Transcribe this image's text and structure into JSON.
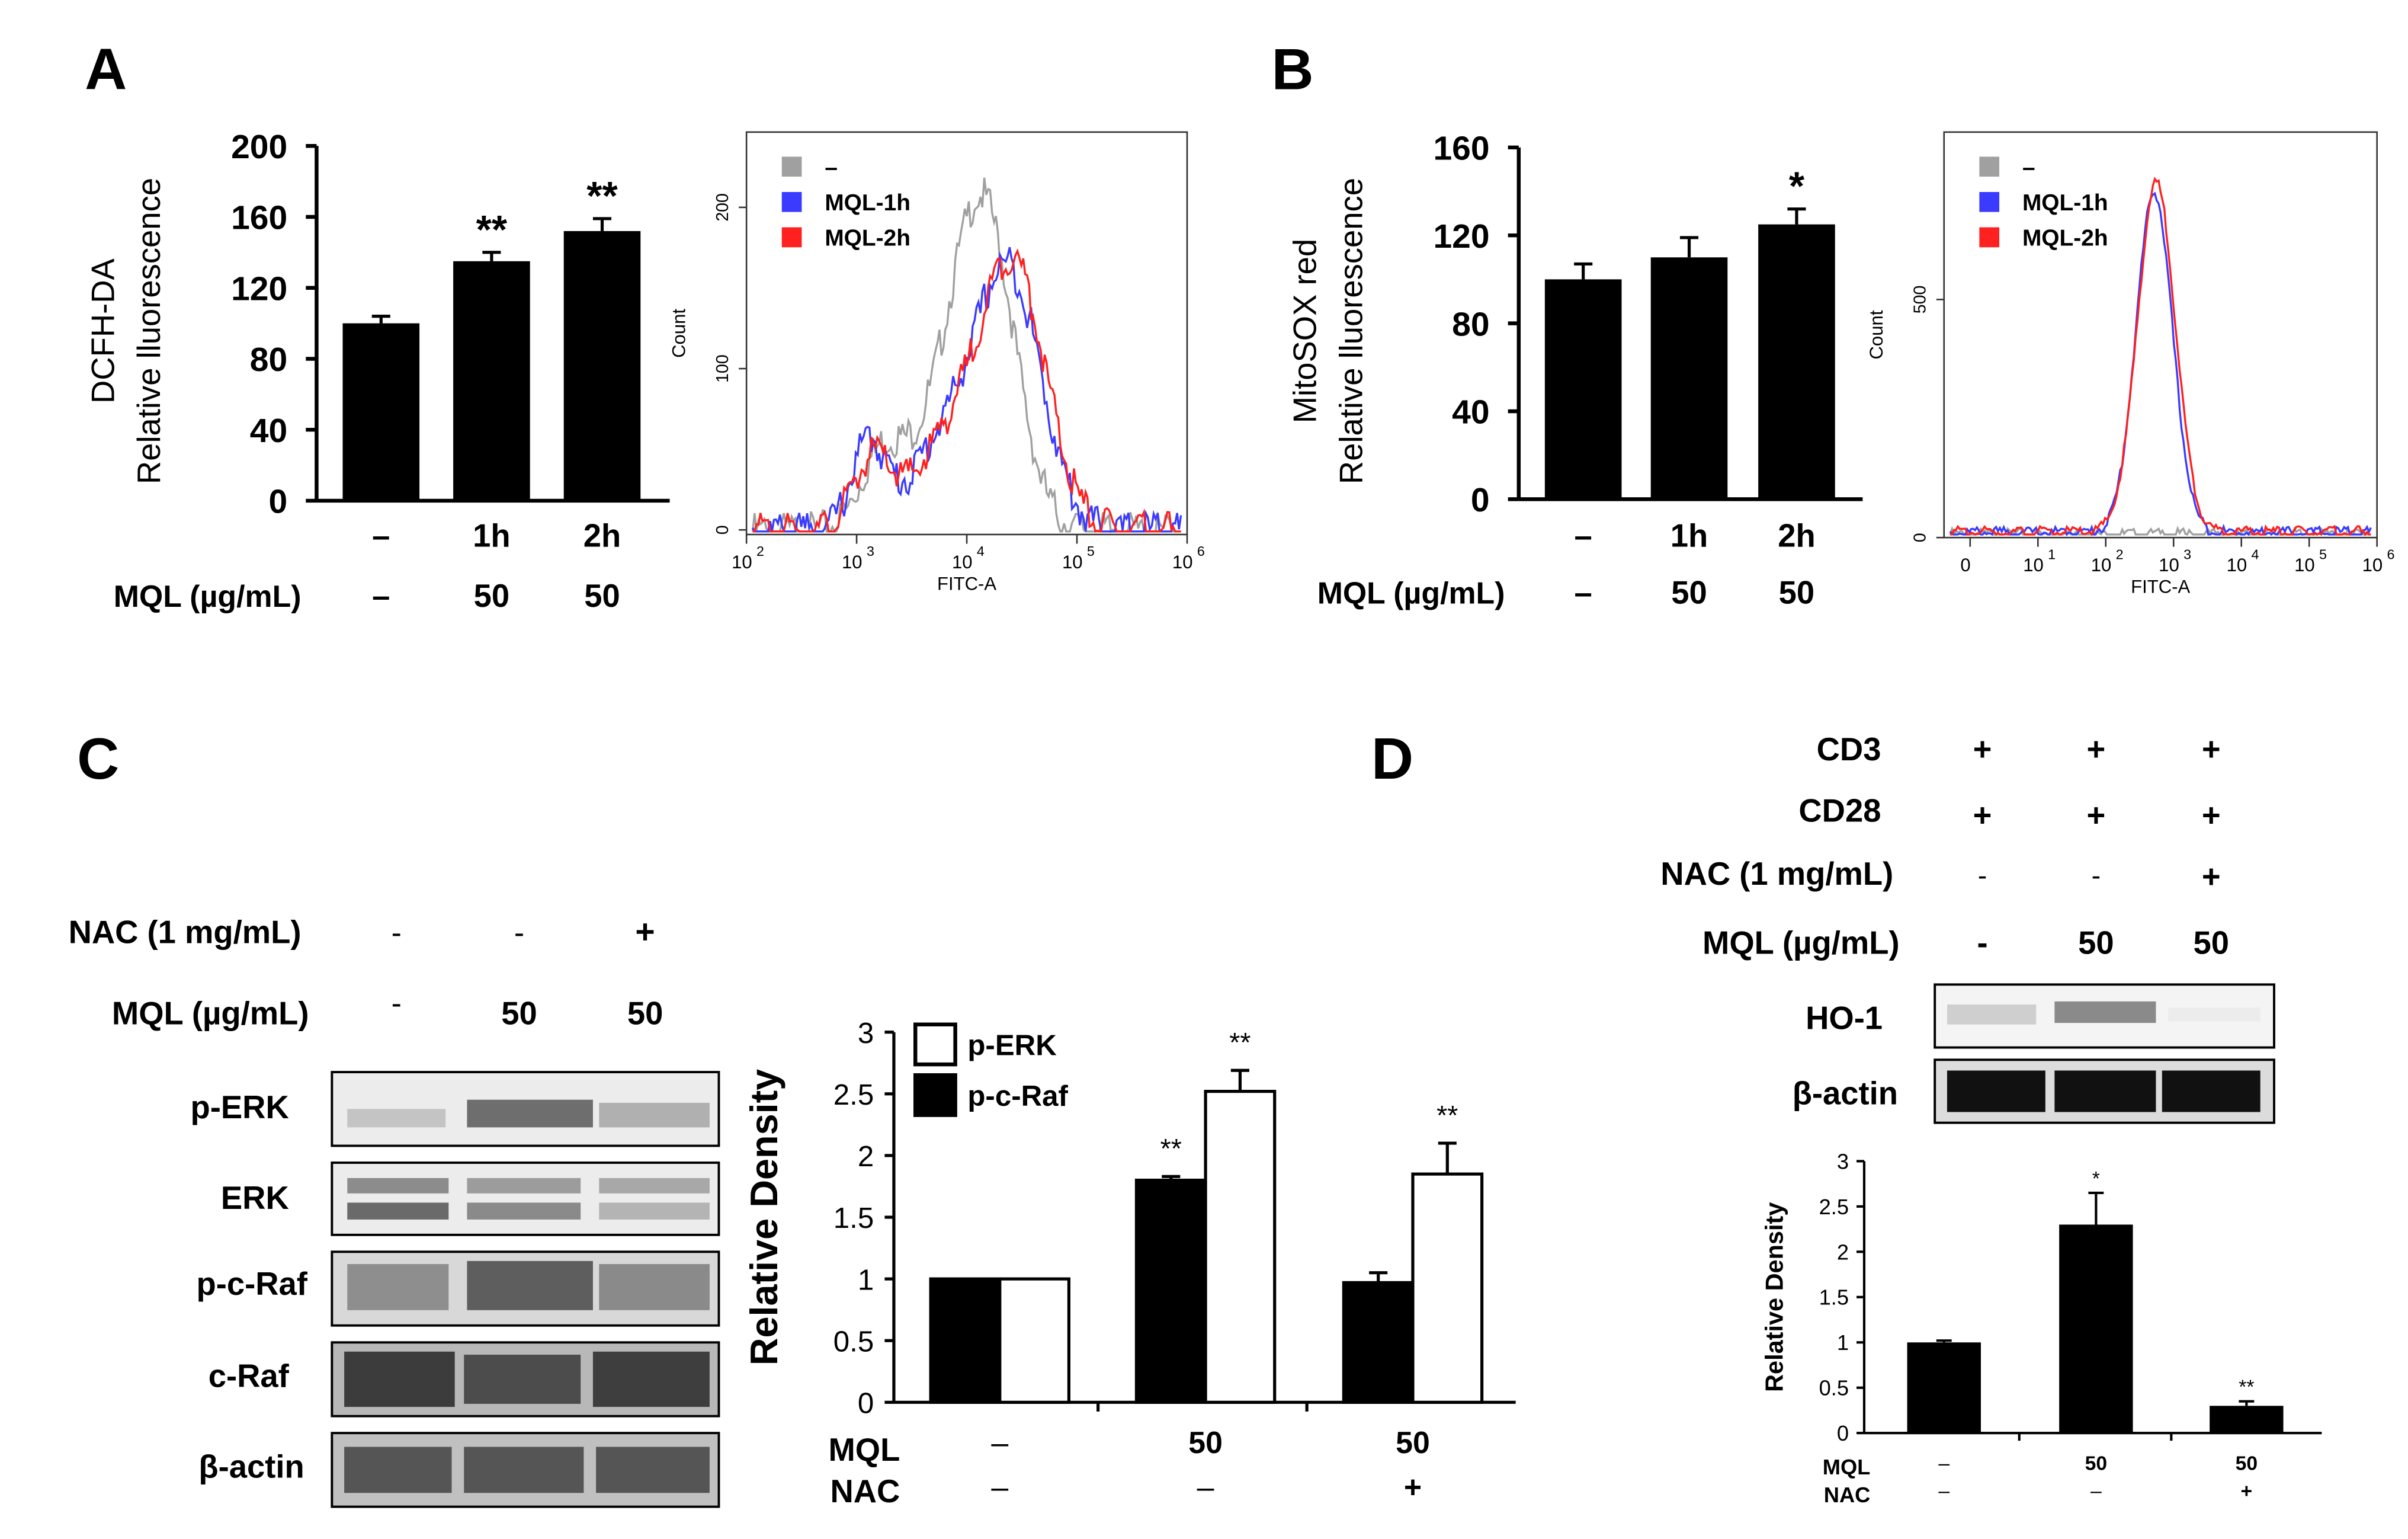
{
  "colors": {
    "black": "#000000",
    "gray": "#a0a0a0",
    "blue": "#3b3bff",
    "red": "#ff2020",
    "white": "#ffffff"
  },
  "chart_data": [
    {
      "panel": "A",
      "type": "bar",
      "ylabel": [
        "DCFH-DA",
        "Relative lluorescence"
      ],
      "ylim": [
        0,
        200
      ],
      "yticks": [
        "0",
        "40",
        "80",
        "120",
        "160",
        "200"
      ],
      "categories": [
        "–",
        "1h",
        "2h"
      ],
      "row_label": "MQL  (µg/mL)",
      "row_values": [
        "–",
        "50",
        "50"
      ],
      "values": [
        100,
        135,
        152
      ],
      "errors": [
        4,
        5,
        7
      ],
      "annotations": [
        "",
        "**",
        "**"
      ]
    },
    {
      "panel": "A-histogram",
      "type": "line",
      "xlabel": "FITC-A",
      "ylabel": "Count",
      "yticks": [
        "0",
        "100",
        "200"
      ],
      "xticks": [
        "10",
        "10",
        "10",
        "10",
        "10"
      ],
      "xtick_exponents": [
        "2",
        "3",
        "4",
        "5",
        "6"
      ],
      "legend": [
        "–",
        "MQL-1h",
        "MQL-2h"
      ],
      "series_count": 3
    },
    {
      "panel": "B",
      "type": "bar",
      "ylabel": [
        "MitoSOX red",
        "Relative lluorescence"
      ],
      "ylim": [
        0,
        160
      ],
      "yticks": [
        "0",
        "40",
        "80",
        "120",
        "160"
      ],
      "categories": [
        "–",
        "1h",
        "2h"
      ],
      "row_label": "MQL  (µg/mL)",
      "row_values": [
        "–",
        "50",
        "50"
      ],
      "values": [
        100,
        110,
        125
      ],
      "errors": [
        7,
        9,
        7
      ],
      "annotations": [
        "",
        "",
        "*"
      ]
    },
    {
      "panel": "B-histogram",
      "type": "line",
      "xlabel": "FITC-A",
      "ylabel": "Count",
      "yticks": [
        "0",
        "500"
      ],
      "xticks": [
        "0",
        "10",
        "10",
        "10",
        "10",
        "10",
        "10"
      ],
      "xtick_exponents": [
        "",
        "1",
        "2",
        "3",
        "4",
        "5",
        "6"
      ],
      "legend": [
        "–",
        "MQL-1h",
        "MQL-2h"
      ],
      "series_count": 3
    },
    {
      "panel": "C",
      "type": "bar",
      "ylabel": "Relative Density",
      "ylim": [
        0,
        3
      ],
      "yticks": [
        "0",
        "0.5",
        "1",
        "1.5",
        "2",
        "2.5",
        "3"
      ],
      "row_labels": [
        "MQL",
        "NAC"
      ],
      "mql_values": [
        "–",
        "50",
        "50"
      ],
      "nac_values": [
        "–",
        "–",
        "+"
      ],
      "series": [
        {
          "name": "p-c-Raf",
          "values": [
            1.0,
            1.8,
            0.97
          ],
          "errors": [
            0.0,
            0.03,
            0.08
          ],
          "annotations": [
            "",
            "**",
            ""
          ]
        },
        {
          "name": "p-ERK",
          "values": [
            1.0,
            2.52,
            1.85
          ],
          "errors": [
            0.0,
            0.17,
            0.25
          ],
          "annotations": [
            "",
            "**",
            "**"
          ]
        }
      ]
    },
    {
      "panel": "D",
      "type": "bar",
      "ylabel": "Relative Density",
      "ylim": [
        0,
        3
      ],
      "yticks": [
        "0",
        "0.5",
        "1",
        "1.5",
        "2",
        "2.5",
        "3"
      ],
      "row_labels": [
        "MQL",
        "NAC"
      ],
      "mql_values": [
        "–",
        "50",
        "50"
      ],
      "nac_values": [
        "–",
        "–",
        "+"
      ],
      "values": [
        1.0,
        2.3,
        0.3
      ],
      "errors": [
        0.02,
        0.35,
        0.05
      ],
      "annotations": [
        "",
        "*",
        "**"
      ]
    }
  ],
  "panel_letters": [
    "A",
    "B",
    "C",
    "D"
  ],
  "blot_c": {
    "nac_label": "NAC (1 mg/mL)",
    "nac_values": [
      "-",
      "-",
      "+"
    ],
    "mql_label": "MQL (µg/mL)",
    "mql_values": [
      "-",
      "50",
      "50"
    ],
    "bands": [
      "p-ERK",
      "ERK",
      "p-c-Raf",
      "c-Raf",
      "β-actin"
    ]
  },
  "blot_d": {
    "rows": [
      {
        "label": "CD3",
        "values": [
          "+",
          "+",
          "+"
        ]
      },
      {
        "label": "CD28",
        "values": [
          "+",
          "+",
          "+"
        ]
      },
      {
        "label": "NAC (1 mg/mL)",
        "values": [
          "-",
          "-",
          "+"
        ]
      },
      {
        "label": "MQL (µg/mL)",
        "values": [
          "-",
          "50",
          "50"
        ]
      }
    ],
    "bands": [
      "HO-1",
      "β-actin"
    ]
  }
}
